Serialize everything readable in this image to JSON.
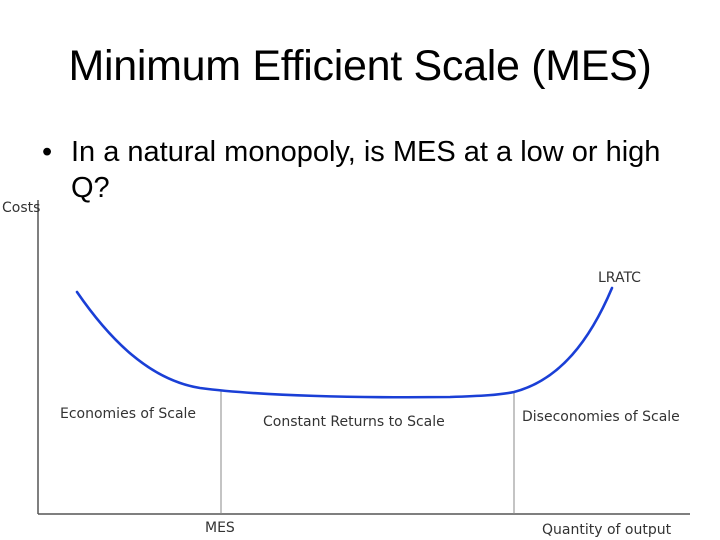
{
  "slide": {
    "title": "Minimum Efficient Scale (MES)",
    "bullet": "In a natural monopoly, is MES at a low or high Q?",
    "bullet_marker": "•"
  },
  "diagram": {
    "y_axis_label": "Costs",
    "x_axis_label": "Quantity of output",
    "curve_label": "LRATC",
    "mes_label": "MES",
    "regions": [
      "Economies of Scale",
      "Constant Returns to Scale",
      "Diseconomies of Scale"
    ],
    "curve_color": "#1a3fd6",
    "axis_color": "#555555"
  }
}
